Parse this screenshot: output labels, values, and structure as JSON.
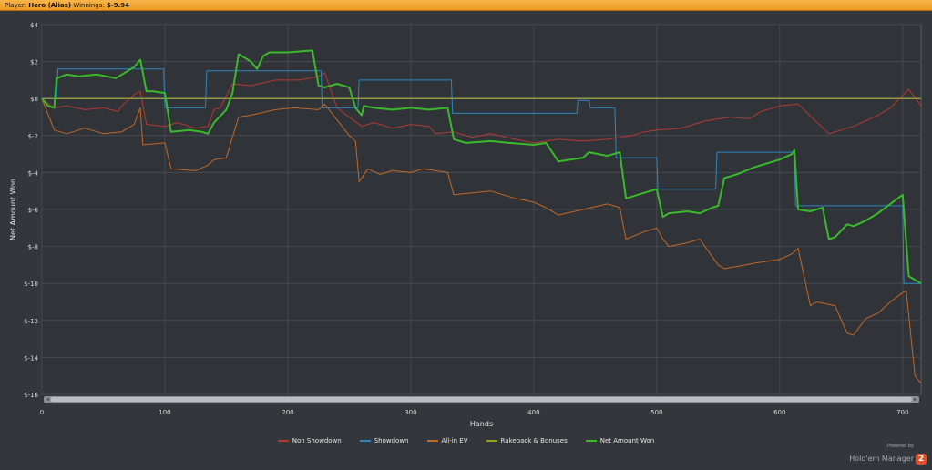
{
  "header": {
    "player_label": "Player:",
    "player_name": "Hero (Alias)",
    "winnings_label": "Winnings:",
    "winnings_value": "$-9.94"
  },
  "brand": {
    "powered_by": "Powered by",
    "name": "Hold'em Manager",
    "logo_glyph": "2"
  },
  "chart_data": {
    "type": "line",
    "xlabel": "Hands",
    "ylabel": "Net Amount Won",
    "xlim": [
      0,
      715
    ],
    "ylim": [
      -16,
      4
    ],
    "x_ticks": [
      0,
      100,
      200,
      300,
      400,
      500,
      600,
      700
    ],
    "x_tick_labels": [
      "0",
      "100",
      "200",
      "300",
      "400",
      "500",
      "600",
      "700"
    ],
    "y_ticks": [
      4,
      2,
      0,
      -2,
      -4,
      -6,
      -8,
      -10,
      -12,
      -14,
      -16
    ],
    "y_tick_labels": [
      "$4",
      "$2",
      "$0",
      "$-2",
      "$-4",
      "$-6",
      "$-8",
      "$-10",
      "$-12",
      "$-14",
      "$-16"
    ],
    "grid": true,
    "legend_position": "bottom",
    "series": [
      {
        "name": "Non Showdown",
        "color": "#b23a35",
        "width": 1,
        "x": [
          0,
          10,
          20,
          35,
          50,
          62,
          65,
          75,
          80,
          85,
          100,
          110,
          125,
          135,
          140,
          145,
          155,
          170,
          190,
          210,
          225,
          230,
          240,
          250,
          260,
          270,
          285,
          300,
          315,
          320,
          335,
          350,
          365,
          385,
          400,
          420,
          440,
          460,
          480,
          490,
          500,
          520,
          540,
          560,
          575,
          585,
          600,
          615,
          640,
          660,
          680,
          690,
          705,
          715
        ],
        "y": [
          0,
          -0.5,
          -0.4,
          -0.6,
          -0.5,
          -0.7,
          -0.4,
          0.2,
          0.4,
          -1.4,
          -1.5,
          -1.3,
          -1.6,
          -1.5,
          -0.6,
          -0.5,
          0.8,
          0.7,
          1.0,
          1.0,
          1.2,
          1.4,
          -0.5,
          -1.0,
          -1.5,
          -1.3,
          -1.6,
          -1.4,
          -1.5,
          -1.9,
          -1.8,
          -2.1,
          -1.9,
          -2.2,
          -2.4,
          -2.2,
          -2.3,
          -2.2,
          -2.0,
          -1.8,
          -1.7,
          -1.6,
          -1.2,
          -1.0,
          -1.1,
          -0.7,
          -0.4,
          -0.3,
          -1.9,
          -1.5,
          -0.9,
          -0.5,
          0.5,
          -0.4
        ]
      },
      {
        "name": "Showdown",
        "color": "#2e86c1",
        "width": 1,
        "x": [
          0,
          12,
          13,
          99,
          100,
          133,
          134,
          227,
          228,
          257,
          258,
          333,
          334,
          435,
          436,
          445,
          446,
          466,
          467,
          500,
          501,
          548,
          549,
          612,
          613,
          700,
          701,
          715
        ],
        "y": [
          0,
          0,
          1.6,
          1.6,
          -0.5,
          -0.5,
          1.5,
          1.5,
          -0.5,
          -0.5,
          1.0,
          1.0,
          -0.8,
          -0.8,
          -0.1,
          -0.1,
          -0.5,
          -0.5,
          -3.2,
          -3.2,
          -4.9,
          -4.9,
          -2.9,
          -2.9,
          -5.8,
          -5.8,
          -10.0,
          -10.0
        ]
      },
      {
        "name": "All-in EV",
        "color": "#c0692a",
        "width": 1,
        "x": [
          0,
          10,
          20,
          35,
          50,
          65,
          75,
          80,
          82,
          100,
          105,
          125,
          135,
          140,
          150,
          160,
          170,
          190,
          205,
          225,
          230,
          250,
          255,
          258,
          265,
          275,
          285,
          300,
          310,
          330,
          335,
          350,
          365,
          385,
          400,
          410,
          420,
          440,
          460,
          470,
          475,
          490,
          500,
          505,
          510,
          525,
          535,
          550,
          555,
          580,
          600,
          610,
          615,
          625,
          630,
          645,
          655,
          660,
          670,
          680,
          690,
          700,
          703,
          710,
          715
        ],
        "y": [
          0,
          -1.7,
          -1.9,
          -1.6,
          -1.9,
          -1.8,
          -1.4,
          -0.5,
          -2.5,
          -2.4,
          -3.8,
          -3.9,
          -3.6,
          -3.3,
          -3.2,
          -1.0,
          -0.9,
          -0.6,
          -0.5,
          -0.6,
          -0.3,
          -2.0,
          -2.3,
          -4.5,
          -3.8,
          -4.1,
          -3.9,
          -4.0,
          -3.8,
          -4.0,
          -5.2,
          -5.1,
          -5.0,
          -5.4,
          -5.6,
          -5.9,
          -6.3,
          -6.0,
          -5.7,
          -5.9,
          -7.6,
          -7.2,
          -7.0,
          -7.6,
          -8.0,
          -7.8,
          -7.6,
          -9.0,
          -9.2,
          -8.9,
          -8.7,
          -8.4,
          -8.1,
          -11.2,
          -11.0,
          -11.2,
          -12.7,
          -12.8,
          -11.9,
          -11.6,
          -11.0,
          -10.5,
          -10.4,
          -15.0,
          -15.4
        ]
      },
      {
        "name": "Rakeback & Bonuses",
        "color": "#9aa01f",
        "width": 1,
        "x": [
          0,
          715
        ],
        "y": [
          0,
          0
        ]
      },
      {
        "name": "Net Amount Won",
        "color": "#3aba2a",
        "width": 2,
        "x": [
          0,
          5,
          10,
          12,
          20,
          30,
          45,
          60,
          75,
          80,
          85,
          90,
          100,
          105,
          120,
          130,
          135,
          140,
          150,
          155,
          160,
          165,
          170,
          175,
          180,
          185,
          200,
          220,
          225,
          230,
          240,
          250,
          255,
          260,
          262,
          270,
          285,
          300,
          315,
          330,
          335,
          345,
          365,
          380,
          400,
          410,
          420,
          440,
          445,
          460,
          465,
          470,
          475,
          490,
          500,
          505,
          510,
          525,
          535,
          545,
          550,
          555,
          565,
          580,
          600,
          610,
          612,
          615,
          625,
          635,
          640,
          645,
          655,
          660,
          670,
          680,
          690,
          700,
          705,
          715
        ],
        "y": [
          0,
          -0.4,
          -0.5,
          1.1,
          1.3,
          1.2,
          1.3,
          1.1,
          1.7,
          2.1,
          0.4,
          0.4,
          0.3,
          -1.8,
          -1.7,
          -1.8,
          -1.9,
          -1.3,
          -0.6,
          0.3,
          2.4,
          2.2,
          2.0,
          1.6,
          2.3,
          2.5,
          2.5,
          2.6,
          0.7,
          0.6,
          0.8,
          0.6,
          -0.5,
          -0.9,
          -0.4,
          -0.5,
          -0.6,
          -0.5,
          -0.6,
          -0.5,
          -2.2,
          -2.4,
          -2.3,
          -2.4,
          -2.5,
          -2.4,
          -3.4,
          -3.2,
          -2.9,
          -3.1,
          -3.0,
          -2.9,
          -5.4,
          -5.1,
          -4.9,
          -6.4,
          -6.2,
          -6.1,
          -6.2,
          -5.9,
          -5.8,
          -4.3,
          -4.1,
          -3.7,
          -3.3,
          -3.0,
          -2.8,
          -6.0,
          -6.1,
          -5.9,
          -7.6,
          -7.5,
          -6.8,
          -6.9,
          -6.6,
          -6.2,
          -5.7,
          -5.2,
          -9.6,
          -10.0
        ]
      }
    ]
  }
}
